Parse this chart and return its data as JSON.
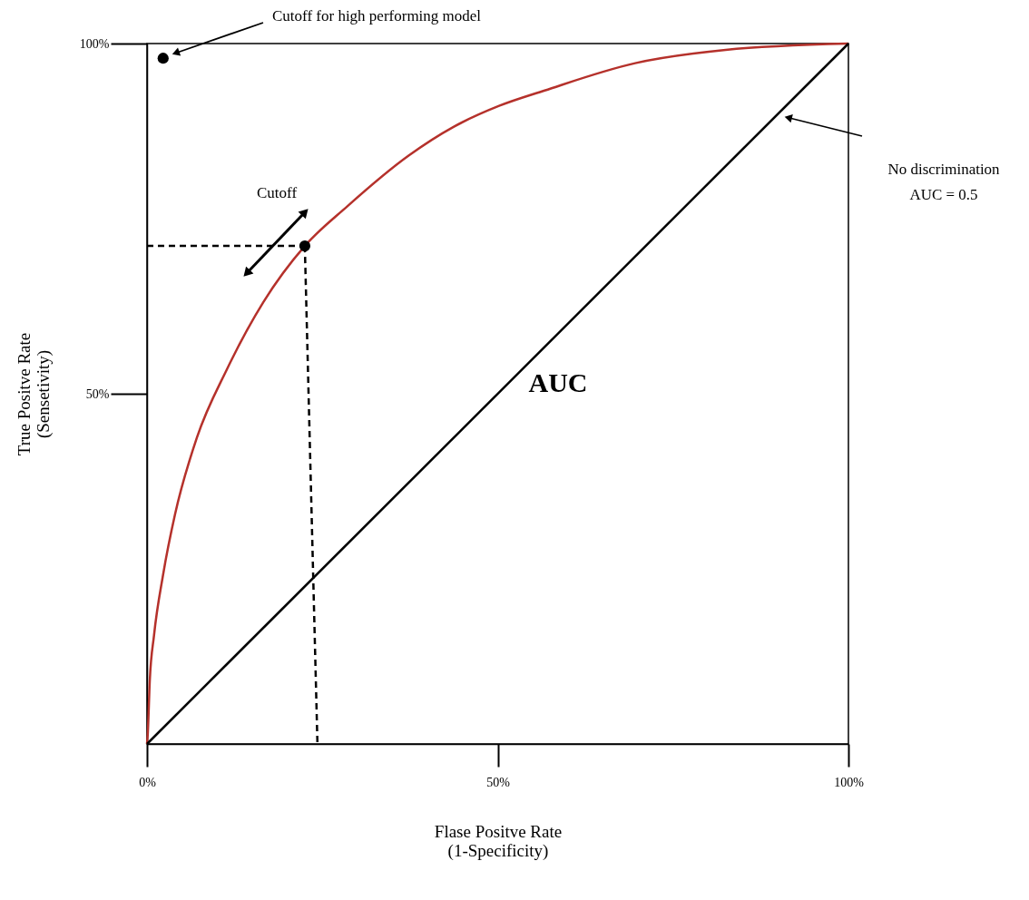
{
  "chart_data": {
    "type": "line",
    "xlabel": "Flase Positve Rate\n(1-Specificity)",
    "ylabel": "True Positve Rate\n(Sensetivity)",
    "xlim": [
      0,
      100
    ],
    "ylim": [
      0,
      100
    ],
    "xticks": [
      {
        "value": 0,
        "label": "0%"
      },
      {
        "value": 50,
        "label": "50%"
      },
      {
        "value": 100,
        "label": "100%"
      }
    ],
    "yticks": [
      {
        "value": 50,
        "label": "50%"
      },
      {
        "value": 100,
        "label": "100%"
      }
    ],
    "grid": false,
    "series": [
      {
        "type": "line",
        "color": "#b5312b",
        "x": [
          0,
          0.1,
          0.4,
          1.0,
          2.3,
          4.0,
          7.1,
          11.4,
          16.6,
          22.5,
          28.6,
          37.3,
          43.7,
          50.2,
          56.7,
          69.6,
          82.5,
          100
        ],
        "values": [
          0,
          1.3,
          9.1,
          15.5,
          24.2,
          32.8,
          43.7,
          53.5,
          63.1,
          71.1,
          76.8,
          84.0,
          88.1,
          91.1,
          93.3,
          97.2,
          99.1,
          100
        ]
      },
      {
        "type": "line",
        "color": "#000000",
        "line_style": "solid",
        "x": [
          0,
          100
        ],
        "values": [
          0,
          100
        ]
      },
      {
        "type": "line",
        "color": "#000000",
        "line_style": "dashed",
        "x": [
          0,
          22.5
        ],
        "values": [
          71.1,
          71.1
        ]
      },
      {
        "type": "line",
        "color": "#000000",
        "line_style": "dashed",
        "x": [
          22.5,
          24.3
        ],
        "values": [
          71.1,
          0
        ]
      },
      {
        "type": "scatter",
        "color": "#000000",
        "marker": "circle",
        "x": [
          22.5,
          2.3
        ],
        "values": [
          71.1,
          97.9
        ]
      }
    ],
    "annotations": [
      "Cutoff for high performing model",
      "Cutoff",
      "No discrimination\nAUC = 0.5",
      "AUC"
    ]
  }
}
